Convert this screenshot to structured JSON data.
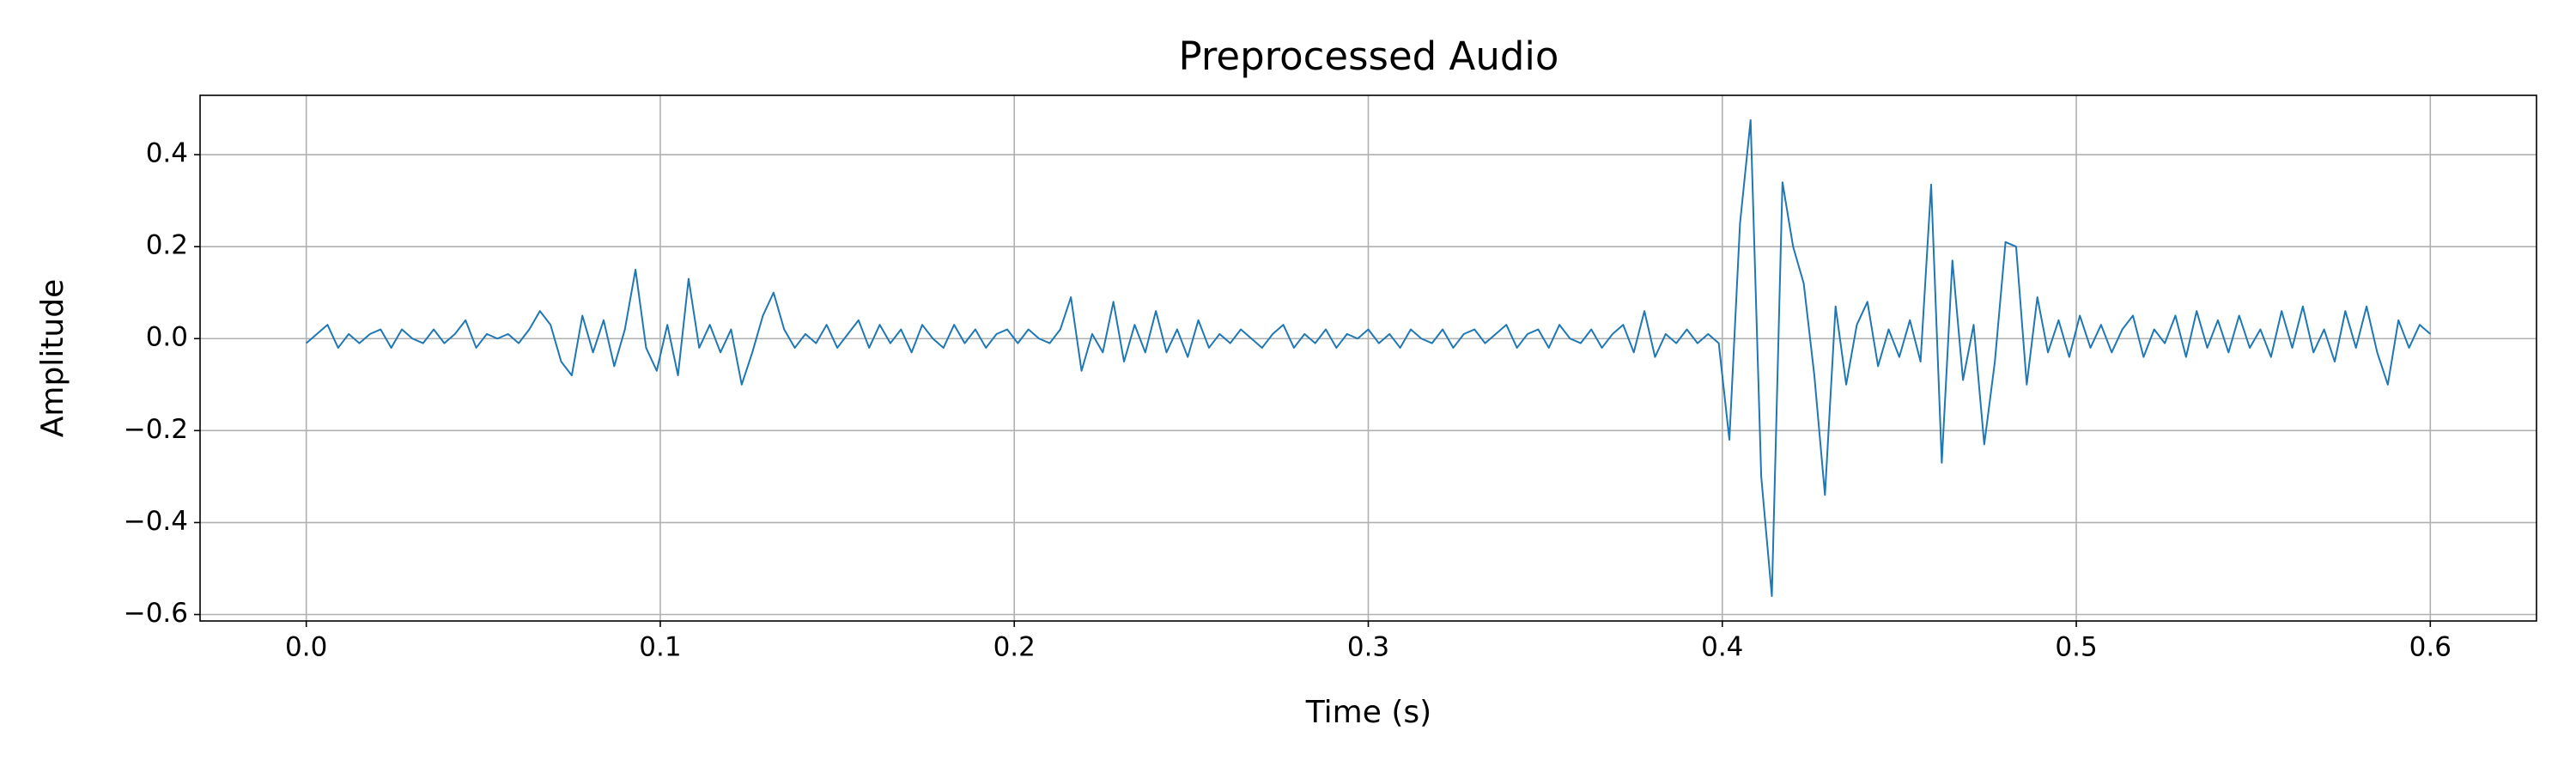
{
  "chart_data": {
    "type": "line",
    "title": "Preprocessed Audio",
    "x_label": "Time (s)",
    "y_label": "Amplitude",
    "color": "#1f77b4",
    "grid": true,
    "xlim": [
      -0.03,
      0.63
    ],
    "xticks": [
      {
        "value": 0,
        "label": "0.0"
      },
      0.1,
      0.2,
      0.3,
      0.4,
      0.5,
      0.6
    ],
    "ylim": [
      -0.614,
      0.529
    ],
    "yticks": [
      {
        "value": -0.6,
        "label": "−0.6"
      },
      {
        "value": -0.4,
        "label": "−0.4"
      },
      {
        "value": -0.2,
        "label": "−0.2"
      },
      {
        "value": 0,
        "label": "0.0"
      },
      0.2,
      0.4
    ],
    "x": [
      0,
      0.003,
      0.006,
      0.009,
      0.012,
      0.015,
      0.018,
      0.021,
      0.024,
      0.027,
      0.03,
      0.033,
      0.036,
      0.039,
      0.042,
      0.045,
      0.048,
      0.051,
      0.054,
      0.057,
      0.06,
      0.063,
      0.066,
      0.069,
      0.072,
      0.075,
      0.078,
      0.081,
      0.084,
      0.087,
      0.09,
      0.093,
      0.096,
      0.099,
      0.102,
      0.105,
      0.108,
      0.111,
      0.114,
      0.117,
      0.12,
      0.123,
      0.126,
      0.129,
      0.132,
      0.135,
      0.138,
      0.141,
      0.144,
      0.147,
      0.15,
      0.153,
      0.156,
      0.159,
      0.162,
      0.165,
      0.168,
      0.171,
      0.174,
      0.177,
      0.18,
      0.183,
      0.186,
      0.189,
      0.192,
      0.195,
      0.198,
      0.201,
      0.204,
      0.207,
      0.21,
      0.213,
      0.216,
      0.219,
      0.222,
      0.225,
      0.228,
      0.231,
      0.234,
      0.237,
      0.24,
      0.243,
      0.246,
      0.249,
      0.252,
      0.255,
      0.258,
      0.261,
      0.264,
      0.267,
      0.27,
      0.273,
      0.276,
      0.279,
      0.282,
      0.285,
      0.288,
      0.291,
      0.294,
      0.297,
      0.3,
      0.303,
      0.306,
      0.309,
      0.312,
      0.315,
      0.318,
      0.321,
      0.324,
      0.327,
      0.33,
      0.333,
      0.336,
      0.339,
      0.342,
      0.345,
      0.348,
      0.351,
      0.354,
      0.357,
      0.36,
      0.363,
      0.366,
      0.369,
      0.372,
      0.375,
      0.378,
      0.381,
      0.384,
      0.387,
      0.39,
      0.393,
      0.396,
      0.399,
      0.402,
      0.405,
      0.408,
      0.411,
      0.414,
      0.417,
      0.42,
      0.423,
      0.426,
      0.429,
      0.432,
      0.435,
      0.438,
      0.441,
      0.444,
      0.447,
      0.45,
      0.453,
      0.456,
      0.459,
      0.462,
      0.465,
      0.468,
      0.471,
      0.474,
      0.477,
      0.48,
      0.483,
      0.486,
      0.489,
      0.492,
      0.495,
      0.498,
      0.501,
      0.504,
      0.507,
      0.51,
      0.513,
      0.516,
      0.519,
      0.522,
      0.525,
      0.528,
      0.531,
      0.534,
      0.537,
      0.54,
      0.543,
      0.546,
      0.549,
      0.552,
      0.555,
      0.558,
      0.561,
      0.564,
      0.567,
      0.57,
      0.573,
      0.576,
      0.579,
      0.582,
      0.585,
      0.588,
      0.591,
      0.594,
      0.597,
      0.6
    ],
    "values": [
      -0.01,
      0.01,
      0.03,
      -0.02,
      0.01,
      -0.01,
      0.01,
      0.02,
      -0.02,
      0.02,
      0,
      -0.01,
      0.02,
      -0.01,
      0.01,
      0.04,
      -0.02,
      0.01,
      0,
      0.01,
      -0.01,
      0.02,
      0.06,
      0.03,
      -0.05,
      -0.08,
      0.05,
      -0.03,
      0.04,
      -0.06,
      0.02,
      0.15,
      -0.02,
      -0.07,
      0.03,
      -0.08,
      0.13,
      -0.02,
      0.03,
      -0.03,
      0.02,
      -0.1,
      -0.03,
      0.05,
      0.1,
      0.02,
      -0.02,
      0.01,
      -0.01,
      0.03,
      -0.02,
      0.01,
      0.04,
      -0.02,
      0.03,
      -0.01,
      0.02,
      -0.03,
      0.03,
      0,
      -0.02,
      0.03,
      -0.01,
      0.02,
      -0.02,
      0.01,
      0.02,
      -0.01,
      0.02,
      0,
      -0.01,
      0.02,
      0.09,
      -0.07,
      0.01,
      -0.03,
      0.08,
      -0.05,
      0.03,
      -0.03,
      0.06,
      -0.03,
      0.02,
      -0.04,
      0.04,
      -0.02,
      0.01,
      -0.01,
      0.02,
      0,
      -0.02,
      0.01,
      0.03,
      -0.02,
      0.01,
      -0.01,
      0.02,
      -0.02,
      0.01,
      0,
      0.02,
      -0.01,
      0.01,
      -0.02,
      0.02,
      0,
      -0.01,
      0.02,
      -0.02,
      0.01,
      0.02,
      -0.01,
      0.01,
      0.03,
      -0.02,
      0.01,
      0.02,
      -0.02,
      0.03,
      0,
      -0.01,
      0.02,
      -0.02,
      0.01,
      0.03,
      -0.03,
      0.06,
      -0.04,
      0.01,
      -0.01,
      0.02,
      -0.01,
      0.01,
      -0.01,
      -0.22,
      0.25,
      0.475,
      -0.3,
      -0.56,
      0.34,
      0.2,
      0.12,
      -0.08,
      -0.34,
      0.07,
      -0.1,
      0.03,
      0.08,
      -0.06,
      0.02,
      -0.04,
      0.04,
      -0.05,
      0.335,
      -0.27,
      0.17,
      -0.09,
      0.03,
      -0.23,
      -0.05,
      0.21,
      0.2,
      -0.1,
      0.09,
      -0.03,
      0.04,
      -0.04,
      0.05,
      -0.02,
      0.03,
      -0.03,
      0.02,
      0.05,
      -0.04,
      0.02,
      -0.01,
      0.05,
      -0.04,
      0.06,
      -0.02,
      0.04,
      -0.03,
      0.05,
      -0.02,
      0.02,
      -0.04,
      0.06,
      -0.02,
      0.07,
      -0.03,
      0.02,
      -0.05,
      0.06,
      -0.02,
      0.07,
      -0.03,
      -0.1,
      0.04,
      -0.02,
      0.03,
      0.01
    ]
  }
}
